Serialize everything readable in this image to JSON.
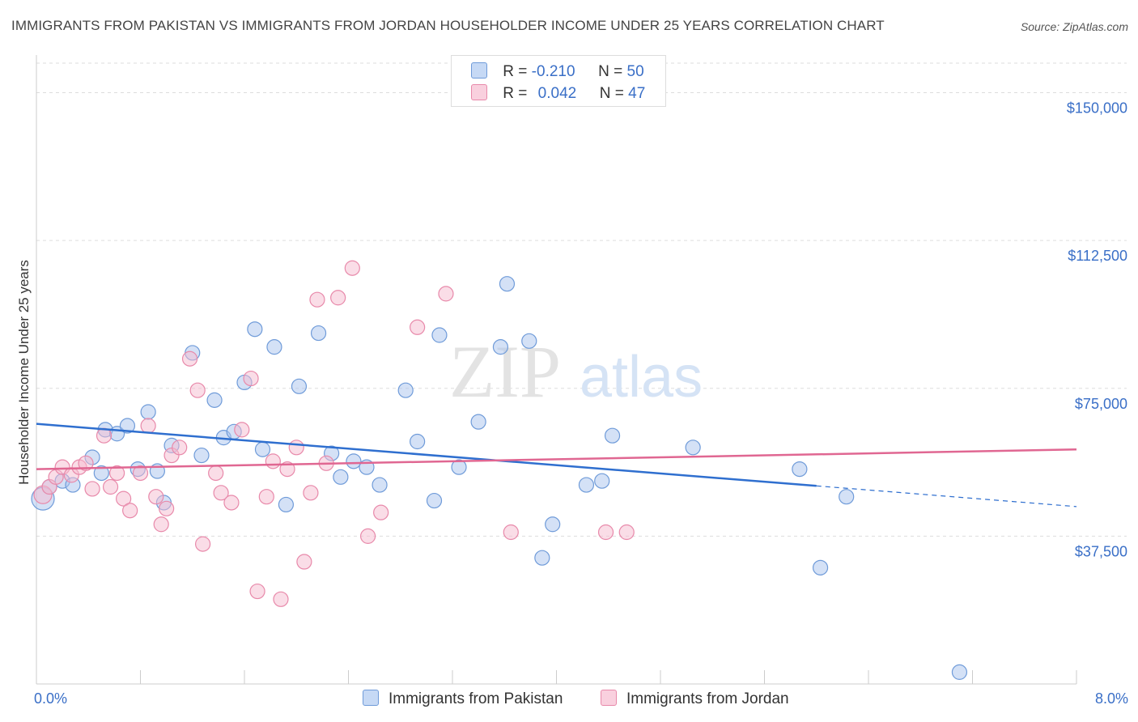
{
  "header": {
    "title": "IMMIGRANTS FROM PAKISTAN VS IMMIGRANTS FROM JORDAN HOUSEHOLDER INCOME UNDER 25 YEARS CORRELATION CHART",
    "source": "Source: ZipAtlas.com"
  },
  "watermark": {
    "zip": "ZIP",
    "atlas": "atlas"
  },
  "legend": {
    "pakistan": {
      "r_label": "R =",
      "r_value": "-0.210",
      "n_label": "N =",
      "n_value": "50"
    },
    "jordan": {
      "r_label": "R =",
      "r_value": "0.042",
      "n_label": "N =",
      "n_value": "47"
    }
  },
  "chart_data": {
    "type": "scatter",
    "ylabel": "Householder Income Under 25 years",
    "xlim": [
      0,
      8
    ],
    "ylim": [
      0,
      157500
    ],
    "x_tick_labels": [
      {
        "value": 0,
        "label": "0.0%"
      },
      {
        "value": 8,
        "label": "8.0%"
      }
    ],
    "y_tick_labels": [
      {
        "value": 37500,
        "label": "$37,500"
      },
      {
        "value": 75000,
        "label": "$75,000"
      },
      {
        "value": 112500,
        "label": "$112,500"
      },
      {
        "value": 150000,
        "label": "$150,000"
      }
    ],
    "grid": true,
    "legend_position": "top-center and bottom",
    "series": [
      {
        "name": "Immigrants from Pakistan",
        "color": "#a9c4ee",
        "stroke": "#6f9bd9",
        "trend_color": "#2f6fcf",
        "trend": {
          "x0": 0,
          "y0": 66000,
          "x1": 8,
          "y1": 45000,
          "solid_until": 6.0
        },
        "points": [
          [
            0.05,
            47000,
            14
          ],
          [
            0.1,
            50000,
            9
          ],
          [
            0.2,
            51500,
            9
          ],
          [
            0.43,
            57500,
            9
          ],
          [
            0.5,
            53500,
            9
          ],
          [
            0.53,
            64500,
            9
          ],
          [
            0.62,
            63500,
            9
          ],
          [
            0.7,
            65500,
            9
          ],
          [
            0.78,
            54500,
            9
          ],
          [
            0.86,
            69000,
            9
          ],
          [
            0.93,
            54000,
            9
          ],
          [
            0.98,
            46000,
            9
          ],
          [
            1.04,
            60500,
            9
          ],
          [
            1.2,
            84000,
            9
          ],
          [
            1.27,
            58000,
            9
          ],
          [
            1.37,
            72000,
            9
          ],
          [
            1.44,
            62500,
            9
          ],
          [
            1.52,
            64000,
            9
          ],
          [
            1.6,
            76500,
            9
          ],
          [
            1.68,
            90000,
            9
          ],
          [
            1.74,
            59500,
            9
          ],
          [
            1.83,
            85500,
            9
          ],
          [
            1.92,
            45500,
            9
          ],
          [
            2.02,
            75500,
            9
          ],
          [
            2.17,
            89000,
            9
          ],
          [
            2.27,
            58500,
            9
          ],
          [
            2.34,
            52500,
            9
          ],
          [
            2.44,
            56500,
            9
          ],
          [
            2.54,
            55000,
            9
          ],
          [
            2.64,
            50500,
            9
          ],
          [
            2.84,
            74500,
            9
          ],
          [
            2.93,
            61500,
            9
          ],
          [
            3.06,
            46500,
            9
          ],
          [
            3.1,
            88500,
            9
          ],
          [
            3.25,
            55000,
            9
          ],
          [
            3.4,
            66500,
            9
          ],
          [
            3.57,
            85500,
            9
          ],
          [
            3.62,
            101500,
            9
          ],
          [
            3.79,
            87000,
            9
          ],
          [
            3.89,
            32000,
            9
          ],
          [
            3.97,
            40500,
            9
          ],
          [
            4.23,
            50500,
            9
          ],
          [
            4.35,
            51500,
            9
          ],
          [
            4.43,
            63000,
            9
          ],
          [
            5.05,
            60000,
            9
          ],
          [
            5.87,
            54500,
            9
          ],
          [
            6.03,
            29500,
            9
          ],
          [
            6.23,
            47500,
            9
          ],
          [
            7.1,
            3000,
            9
          ],
          [
            0.28,
            50500,
            9
          ]
        ]
      },
      {
        "name": "Immigrants from Jordan",
        "color": "#f6bcd0",
        "stroke": "#e889aa",
        "trend_color": "#e06792",
        "trend": {
          "x0": 0,
          "y0": 54500,
          "x1": 8,
          "y1": 59500
        },
        "points": [
          [
            0.05,
            48000,
            11
          ],
          [
            0.1,
            50000,
            9
          ],
          [
            0.15,
            52500,
            9
          ],
          [
            0.2,
            55000,
            9
          ],
          [
            0.27,
            53000,
            9
          ],
          [
            0.33,
            55000,
            9
          ],
          [
            0.38,
            56000,
            9
          ],
          [
            0.43,
            49500,
            9
          ],
          [
            0.52,
            63000,
            9
          ],
          [
            0.57,
            50000,
            9
          ],
          [
            0.62,
            53500,
            9
          ],
          [
            0.67,
            47000,
            9
          ],
          [
            0.72,
            44000,
            9
          ],
          [
            0.8,
            53500,
            9
          ],
          [
            0.86,
            65500,
            9
          ],
          [
            0.92,
            47500,
            9
          ],
          [
            0.96,
            40500,
            9
          ],
          [
            1.0,
            44500,
            9
          ],
          [
            1.04,
            58000,
            9
          ],
          [
            1.1,
            60000,
            9
          ],
          [
            1.18,
            82500,
            9
          ],
          [
            1.24,
            74500,
            9
          ],
          [
            1.28,
            35500,
            9
          ],
          [
            1.38,
            53500,
            9
          ],
          [
            1.42,
            48500,
            9
          ],
          [
            1.5,
            46000,
            9
          ],
          [
            1.58,
            64500,
            9
          ],
          [
            1.65,
            77500,
            9
          ],
          [
            1.7,
            23500,
            9
          ],
          [
            1.77,
            47500,
            9
          ],
          [
            1.82,
            56500,
            9
          ],
          [
            1.88,
            21500,
            9
          ],
          [
            1.93,
            54500,
            9
          ],
          [
            2.0,
            60000,
            9
          ],
          [
            2.06,
            31000,
            9
          ],
          [
            2.11,
            48500,
            9
          ],
          [
            2.16,
            97500,
            9
          ],
          [
            2.23,
            56000,
            9
          ],
          [
            2.32,
            98000,
            9
          ],
          [
            2.43,
            105500,
            9
          ],
          [
            2.55,
            37500,
            9
          ],
          [
            2.65,
            43500,
            9
          ],
          [
            2.93,
            90500,
            9
          ],
          [
            3.15,
            99000,
            9
          ],
          [
            3.65,
            38500,
            9
          ],
          [
            4.38,
            38500,
            9
          ],
          [
            4.54,
            38500,
            9
          ]
        ]
      }
    ]
  }
}
